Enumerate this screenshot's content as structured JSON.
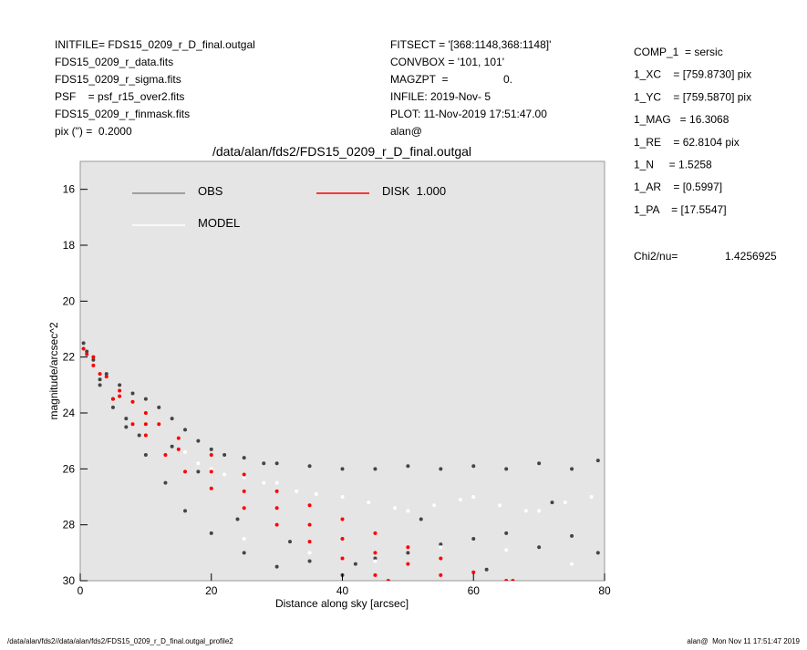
{
  "header": {
    "left": [
      "INITFILE= FDS15_0209_r_D_final.outgal",
      "FDS15_0209_r_data.fits",
      "FDS15_0209_r_sigma.fits",
      "PSF    = psf_r15_over2.fits",
      "FDS15_0209_r_finmask.fits",
      "pix (\") =  0.2000"
    ],
    "middle": [
      "FITSECT = '[368:1148,368:1148]'",
      "CONVBOX = '101, 101'",
      "MAGZPT  =",
      "INFILE: 2019-Nov- 5",
      "PLOT: 11-Nov-2019 17:51:47.00",
      "alan@"
    ],
    "magzpt_value": "0.",
    "right": [
      "COMP_1  = sersic",
      "1_XC    = [759.8730] pix",
      "1_YC    = [759.5870] pix",
      "1_MAG   = 16.3068",
      "1_RE    = 62.8104 pix",
      "1_N     = 1.5258",
      "1_AR    = [0.5997]",
      "1_PA    = [17.5547]"
    ],
    "chi2_label": "Chi2/nu=",
    "chi2_value": "1.4256925"
  },
  "chart_data": {
    "type": "scatter",
    "title": "/data/alan/fds2/FDS15_0209_r_D_final.outgal",
    "x_label": "Distance along sky [arcsec]",
    "y_label": "magnitude/arcsec^2",
    "xlim": [
      0,
      80
    ],
    "xticks": [
      0,
      20,
      40,
      60,
      80
    ],
    "ylim": [
      30,
      15
    ],
    "yticks": [
      16,
      18,
      20,
      22,
      24,
      26,
      28,
      30
    ],
    "series": [
      {
        "name": "OBS",
        "color": "#444444",
        "legend_color": "#888888",
        "x": [
          0.5,
          1,
          2,
          3,
          4,
          5,
          6,
          7,
          8,
          9,
          10,
          12,
          14,
          16,
          18,
          20,
          22,
          25,
          28,
          30,
          35,
          40,
          45,
          50,
          55,
          60,
          65,
          70,
          75,
          79,
          3,
          5,
          7,
          10,
          13,
          16,
          20,
          25,
          30,
          35,
          40,
          45,
          50,
          55,
          60,
          65,
          70,
          75,
          79,
          14,
          18,
          24,
          32,
          42,
          52,
          62,
          72
        ],
        "values": [
          21.5,
          21.8,
          22.1,
          22.8,
          22.6,
          23.5,
          23,
          24.2,
          23.3,
          24.8,
          23.5,
          23.8,
          24.2,
          24.6,
          25,
          25.3,
          25.5,
          25.6,
          25.8,
          25.8,
          25.9,
          26,
          26,
          25.9,
          26,
          25.9,
          26,
          25.8,
          26,
          25.7,
          23,
          23.8,
          24.5,
          25.5,
          26.5,
          27.5,
          28.3,
          29,
          29.5,
          29.3,
          29.8,
          29.2,
          29,
          28.7,
          28.5,
          28.3,
          28.8,
          28.4,
          29,
          25.2,
          26.1,
          27.8,
          28.6,
          29.4,
          27.8,
          29.6,
          27.2
        ]
      },
      {
        "name": "MODEL",
        "color": "#ffffff",
        "x": [
          16,
          18,
          20,
          22,
          25,
          28,
          30,
          33,
          36,
          40,
          44,
          48,
          50,
          54,
          58,
          60,
          64,
          68,
          70,
          74,
          78,
          25,
          35,
          45,
          55,
          65,
          75
        ],
        "values": [
          25.4,
          25.8,
          26,
          26.2,
          26.3,
          26.5,
          26.5,
          26.8,
          26.9,
          27,
          27.2,
          27.4,
          27.5,
          27.3,
          27.1,
          27,
          27.3,
          27.5,
          27.5,
          27.2,
          27,
          28.5,
          29,
          29.3,
          28.8,
          28.9,
          29.4
        ]
      },
      {
        "name": "DISK  1.000",
        "color": "#ff0000",
        "x": [
          0.5,
          1,
          2,
          4,
          6,
          8,
          10,
          12,
          15,
          20,
          25,
          30,
          35,
          40,
          45,
          50,
          55,
          60,
          65,
          66,
          3,
          5,
          8,
          10,
          13,
          16,
          20,
          25,
          30,
          35,
          40,
          45,
          47,
          2,
          6,
          10,
          15,
          20,
          25,
          30,
          35,
          40,
          45,
          50,
          55
        ],
        "values": [
          21.7,
          21.9,
          22,
          22.7,
          23.2,
          23.6,
          24,
          24.4,
          24.9,
          25.5,
          26.2,
          26.8,
          27.3,
          27.8,
          28.3,
          28.8,
          29.2,
          29.7,
          30,
          30,
          22.6,
          23.5,
          24.4,
          24.8,
          25.5,
          26.1,
          26.7,
          27.4,
          28,
          28.6,
          29.2,
          29.8,
          30,
          22.3,
          23.4,
          24.4,
          25.3,
          26.1,
          26.8,
          27.4,
          28,
          28.5,
          29,
          29.4,
          29.8
        ]
      }
    ]
  },
  "footer": {
    "left": "/data/alan/fds2//data/alan/fds2/FDS15_0209_r_D_final.outgal_profile2",
    "right": "alan@  Mon Nov 11 17:51:47 2019"
  }
}
